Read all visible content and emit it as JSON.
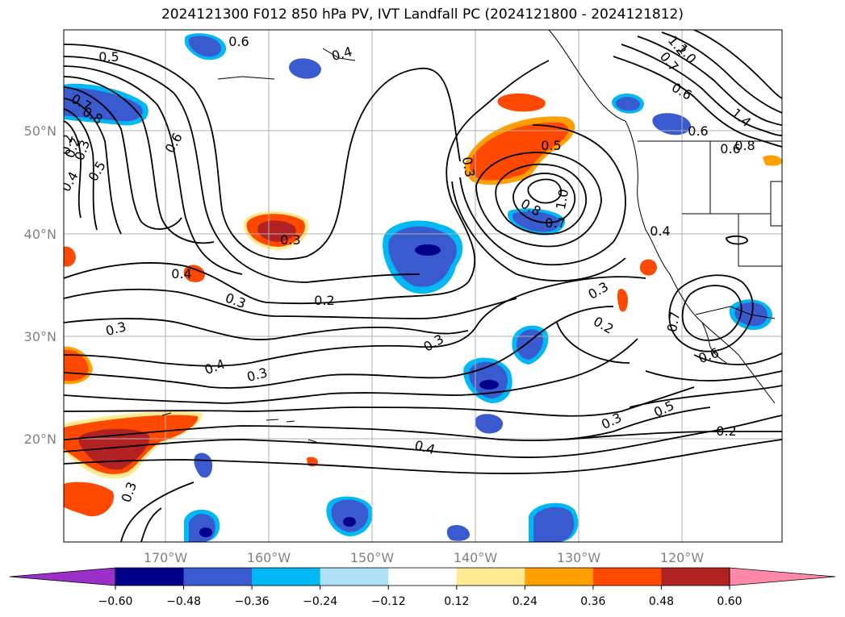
{
  "title": "2024121300 F012 850 hPa PV, IVT Landfall PC (2024121800 - 2024121812)",
  "axes": {
    "lat_labels": [
      "50°N",
      "40°N",
      "30°N",
      "20°N"
    ],
    "lon_labels": [
      "170°W",
      "160°W",
      "150°W",
      "140°W",
      "130°W",
      "120°W"
    ],
    "label_color": "#808080"
  },
  "colorbar": {
    "ticks": [
      "−0.60",
      "−0.48",
      "−0.36",
      "−0.24",
      "−0.12",
      "0.12",
      "0.24",
      "0.36",
      "0.48",
      "0.60"
    ],
    "bins": [
      "#9a30c8",
      "#00008c",
      "#3a5ad0",
      "#00b8f4",
      "#aee1f8",
      "#ffffff",
      "#ffea90",
      "#ffa000",
      "#ff4800",
      "#b22222",
      "#ff88a8"
    ]
  },
  "contour_labels": [
    "0.6",
    "0.4",
    "0.5",
    "0.7",
    "0.8",
    "0.2",
    "0.3",
    "0.4",
    "0.5",
    "0.6",
    "0.3",
    "0.4",
    "0.3",
    "0.2",
    "0.3",
    "0.4",
    "0.3",
    "0.4",
    "0.3",
    "0.3",
    "0.5",
    "0.3",
    "0.6",
    "0.8",
    "0.7",
    "1.0",
    "0.4",
    "0.3",
    "0.2",
    "0.7",
    "0.6",
    "0.6",
    "0.5",
    "0.2",
    "1.2",
    "0.7",
    "1.0",
    "0.6",
    "1.4",
    "0.8",
    "0.2",
    "0.3"
  ],
  "pv_colors": {
    "neg_light": "#00b8f4",
    "neg_mid": "#3a5ad0",
    "neg_dark": "#00008c",
    "pos_yellow": "#ffea90",
    "pos_orange": "#ffa000",
    "pos_red": "#ff4800",
    "pos_dark": "#b22222"
  }
}
